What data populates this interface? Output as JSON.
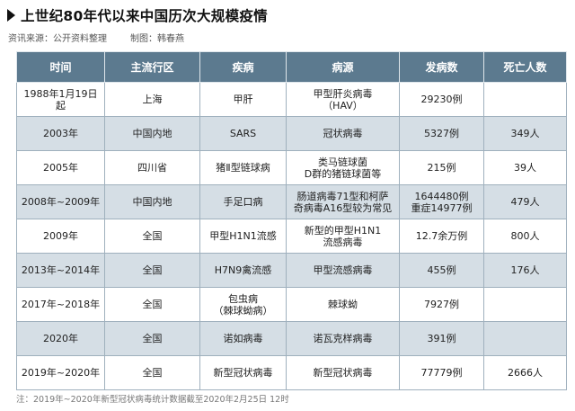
{
  "title": "上世纪80年代以来中国历次大规模疫情",
  "meta": {
    "source": "资讯来源：公开资料整理",
    "author": "制图：韩春燕"
  },
  "table": {
    "headers": [
      "时间",
      "主流行区",
      "疾病",
      "病源",
      "发病数",
      "死亡人数"
    ],
    "rows": [
      {
        "time": "1988年1月19日起",
        "region": "上海",
        "disease": "甲肝",
        "source": "甲型肝炎病毒\n（HAV）",
        "cases": "29230例",
        "deaths": ""
      },
      {
        "time": "2003年",
        "region": "中国内地",
        "disease": "SARS",
        "source": "冠状病毒",
        "cases": "5327例",
        "deaths": "349人"
      },
      {
        "time": "2005年",
        "region": "四川省",
        "disease": "猪Ⅱ型链球病",
        "source": "类马链球菌\nD群的猪链球菌等",
        "cases": "215例",
        "deaths": "39人"
      },
      {
        "time": "2008年~2009年",
        "region": "中国内地",
        "disease": "手足口病",
        "source": "肠道病毒71型和柯萨\n奇病毒A16型较为常见",
        "cases": "1644480例\n重症14977例",
        "deaths": "479人"
      },
      {
        "time": "2009年",
        "region": "全国",
        "disease": "甲型H1N1流感",
        "source": "新型的甲型H1N1\n流感病毒",
        "cases": "12.7余万例",
        "deaths": "800人"
      },
      {
        "time": "2013年~2014年",
        "region": "全国",
        "disease": "H7N9禽流感",
        "source": "甲型流感病毒",
        "cases": "455例",
        "deaths": "176人"
      },
      {
        "time": "2017年~2018年",
        "region": "全国",
        "disease": "包虫病\n（棘球蚴病）",
        "source": "棘球蚴",
        "cases": "7927例",
        "deaths": ""
      },
      {
        "time": "2020年",
        "region": "全国",
        "disease": "诺如病毒",
        "source": "诺瓦克样病毒",
        "cases": "391例",
        "deaths": ""
      },
      {
        "time": "2019年~2020年",
        "region": "全国",
        "disease": "新型冠状病毒",
        "source": "新型冠状病毒",
        "cases": "77779例",
        "deaths": "2666人"
      }
    ]
  },
  "note": "注：2019年~2020年新型冠状病毒统计数据截至2020年2月25日  12时",
  "colors": {
    "header_bg": "#5c7a8f",
    "alt_row_bg": "#d5dee5",
    "border": "#9fb0bd"
  }
}
